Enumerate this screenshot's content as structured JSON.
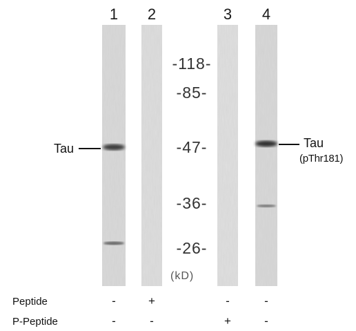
{
  "lanes": [
    {
      "number": "1",
      "peptide": "-",
      "p_peptide": "-"
    },
    {
      "number": "2",
      "peptide": "+",
      "p_peptide": "-"
    },
    {
      "number": "3",
      "peptide": "-",
      "p_peptide": "+"
    },
    {
      "number": "4",
      "peptide": "-",
      "p_peptide": "-"
    }
  ],
  "markers": [
    "-118-",
    "-85-",
    "-47-",
    "-36-",
    "-26-"
  ],
  "unit_label": "(kD)",
  "left_annotation": "Tau",
  "right_annotation": {
    "line1": "Tau",
    "line2": "(pThr181)"
  },
  "row_labels": {
    "peptide": "Peptide",
    "p_peptide": "P-Peptide"
  }
}
